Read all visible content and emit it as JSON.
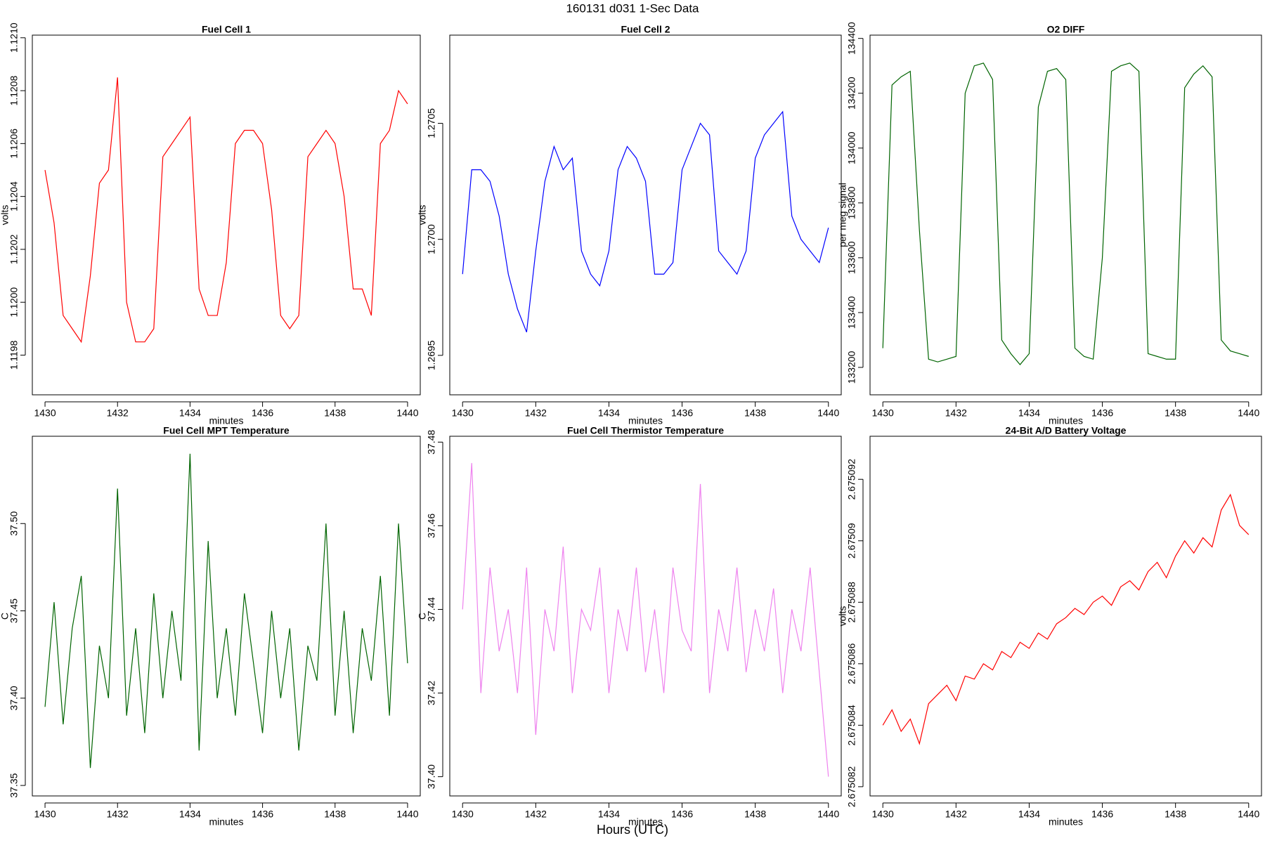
{
  "title": "160131   d031   1-Sec Data",
  "xlabel": "Hours (UTC)",
  "chart_data": [
    {
      "type": "line",
      "title": "Fuel Cell 1",
      "xlabel": "minutes",
      "ylabel": "volts",
      "color": "#ff0000",
      "x": [
        1430,
        1430.25,
        1430.5,
        1430.75,
        1431,
        1431.25,
        1431.5,
        1431.75,
        1432,
        1432.25,
        1432.5,
        1432.75,
        1433,
        1433.25,
        1433.5,
        1433.75,
        1434,
        1434.25,
        1434.5,
        1434.75,
        1435,
        1435.25,
        1435.5,
        1435.75,
        1436,
        1436.25,
        1436.5,
        1436.75,
        1437,
        1437.25,
        1437.5,
        1437.75,
        1438,
        1438.25,
        1438.5,
        1438.75,
        1439,
        1439.25,
        1439.5,
        1439.75,
        1440
      ],
      "values": [
        1.1205,
        1.1203,
        1.11995,
        1.1199,
        1.11985,
        1.1201,
        1.12045,
        1.1205,
        1.12085,
        1.12,
        1.11985,
        1.11985,
        1.1199,
        1.12055,
        1.1206,
        1.12065,
        1.1207,
        1.12005,
        1.11995,
        1.11995,
        1.12015,
        1.1206,
        1.12065,
        1.12065,
        1.1206,
        1.12035,
        1.11995,
        1.1199,
        1.11995,
        1.12055,
        1.1206,
        1.12065,
        1.1206,
        1.1204,
        1.12005,
        1.12005,
        1.11995,
        1.1206,
        1.12065,
        1.1208,
        1.12075
      ],
      "xlim": [
        1429.65,
        1440.35
      ],
      "xticks": [
        1430,
        1432,
        1434,
        1436,
        1438,
        1440
      ],
      "ylim": [
        1.11965,
        1.12101
      ],
      "yticks": [
        {
          "value": 1.1198,
          "label": "1.1198"
        },
        {
          "value": 1.12,
          "label": "1.1200"
        },
        {
          "value": 1.1202,
          "label": "1.1202"
        },
        {
          "value": 1.1204,
          "label": "1.1204"
        },
        {
          "value": 1.1206,
          "label": "1.1206"
        },
        {
          "value": 1.1208,
          "label": "1.1208"
        },
        {
          "value": 1.121,
          "label": "1.1210"
        }
      ]
    },
    {
      "type": "line",
      "title": "Fuel Cell 2",
      "xlabel": "minutes",
      "ylabel": "volts",
      "color": "#0000ff",
      "x": [
        1430,
        1430.25,
        1430.5,
        1430.75,
        1431,
        1431.25,
        1431.5,
        1431.75,
        1432,
        1432.25,
        1432.5,
        1432.75,
        1433,
        1433.25,
        1433.5,
        1433.75,
        1434,
        1434.25,
        1434.5,
        1434.75,
        1435,
        1435.25,
        1435.5,
        1435.75,
        1436,
        1436.25,
        1436.5,
        1436.75,
        1437,
        1437.25,
        1437.5,
        1437.75,
        1438,
        1438.25,
        1438.5,
        1438.75,
        1439,
        1439.25,
        1439.5,
        1439.75,
        1440
      ],
      "values": [
        1.26985,
        1.2703,
        1.2703,
        1.27025,
        1.2701,
        1.26985,
        1.2697,
        1.2696,
        1.26995,
        1.27025,
        1.2704,
        1.2703,
        1.27035,
        1.26995,
        1.26985,
        1.2698,
        1.26995,
        1.2703,
        1.2704,
        1.27035,
        1.27025,
        1.26985,
        1.26985,
        1.2699,
        1.2703,
        1.2704,
        1.2705,
        1.27045,
        1.26995,
        1.2699,
        1.26985,
        1.26995,
        1.27035,
        1.27045,
        1.2705,
        1.27055,
        1.2701,
        1.27,
        1.26995,
        1.2699,
        1.27005
      ],
      "xlim": [
        1429.65,
        1440.35
      ],
      "xticks": [
        1430,
        1432,
        1434,
        1436,
        1438,
        1440
      ],
      "ylim": [
        1.26933,
        1.27088
      ],
      "yticks": [
        1.2695,
        {
          "value": 1.27,
          "label": "1.2700"
        },
        1.2705
      ]
    },
    {
      "type": "line",
      "title": "O2 DIFF",
      "xlabel": "minutes",
      "ylabel": "per meg signal",
      "color": "#006400",
      "x": [
        1430,
        1430.25,
        1430.5,
        1430.75,
        1431,
        1431.25,
        1431.5,
        1431.75,
        1432,
        1432.25,
        1432.5,
        1432.75,
        1433,
        1433.25,
        1433.5,
        1433.75,
        1434,
        1434.25,
        1434.5,
        1434.75,
        1435,
        1435.25,
        1435.5,
        1435.75,
        1436,
        1436.25,
        1436.5,
        1436.75,
        1437,
        1437.25,
        1437.5,
        1437.75,
        1438,
        1438.25,
        1438.5,
        1438.75,
        1439,
        1439.25,
        1439.5,
        1439.75,
        1440
      ],
      "values": [
        133270,
        134230,
        134260,
        134280,
        133700,
        133230,
        133220,
        133230,
        133240,
        134200,
        134300,
        134310,
        134250,
        133300,
        133250,
        133210,
        133250,
        134150,
        134280,
        134290,
        134250,
        133270,
        133240,
        133230,
        133600,
        134280,
        134300,
        134310,
        134280,
        133250,
        133240,
        133230,
        133230,
        134220,
        134270,
        134300,
        134260,
        133300,
        133260,
        133250,
        133240
      ],
      "xlim": [
        1429.65,
        1440.35
      ],
      "xticks": [
        1430,
        1432,
        1434,
        1436,
        1438,
        1440
      ],
      "ylim": [
        133100,
        134412
      ],
      "yticks": [
        133200,
        133400,
        133600,
        133800,
        134000,
        134200,
        134400
      ]
    },
    {
      "type": "line",
      "title": "Fuel Cell MPT Temperature",
      "xlabel": "minutes",
      "ylabel": "C",
      "color": "#006400",
      "x": [
        1430,
        1430.25,
        1430.5,
        1430.75,
        1431,
        1431.25,
        1431.5,
        1431.75,
        1432,
        1432.25,
        1432.5,
        1432.75,
        1433,
        1433.25,
        1433.5,
        1433.75,
        1434,
        1434.25,
        1434.5,
        1434.75,
        1435,
        1435.25,
        1435.5,
        1435.75,
        1436,
        1436.25,
        1436.5,
        1436.75,
        1437,
        1437.25,
        1437.5,
        1437.75,
        1438,
        1438.25,
        1438.5,
        1438.75,
        1439,
        1439.25,
        1439.5,
        1439.75,
        1440
      ],
      "values": [
        37.395,
        37.455,
        37.385,
        37.44,
        37.47,
        37.36,
        37.43,
        37.4,
        37.52,
        37.39,
        37.44,
        37.38,
        37.46,
        37.4,
        37.45,
        37.41,
        37.54,
        37.37,
        37.49,
        37.4,
        37.44,
        37.39,
        37.46,
        37.42,
        37.38,
        37.45,
        37.4,
        37.44,
        37.37,
        37.43,
        37.41,
        37.5,
        37.39,
        37.45,
        37.38,
        37.44,
        37.41,
        37.47,
        37.39,
        37.5,
        37.42
      ],
      "xlim": [
        1429.65,
        1440.35
      ],
      "xticks": [
        1430,
        1432,
        1434,
        1436,
        1438,
        1440
      ],
      "ylim": [
        37.344,
        37.55
      ],
      "yticks": [
        37.35,
        {
          "value": 37.4,
          "label": "37.40"
        },
        37.45,
        {
          "value": 37.5,
          "label": "37.50"
        }
      ]
    },
    {
      "type": "line",
      "title": "Fuel Cell Thermistor Temperature",
      "xlabel": "minutes",
      "ylabel": "C",
      "color": "#ee82ee",
      "x": [
        1430,
        1430.25,
        1430.5,
        1430.75,
        1431,
        1431.25,
        1431.5,
        1431.75,
        1432,
        1432.25,
        1432.5,
        1432.75,
        1433,
        1433.25,
        1433.5,
        1433.75,
        1434,
        1434.25,
        1434.5,
        1434.75,
        1435,
        1435.25,
        1435.5,
        1435.75,
        1436,
        1436.25,
        1436.5,
        1436.75,
        1437,
        1437.25,
        1437.5,
        1437.75,
        1438,
        1438.25,
        1438.5,
        1438.75,
        1439,
        1439.25,
        1439.5,
        1439.75,
        1440
      ],
      "values": [
        37.44,
        37.475,
        37.42,
        37.45,
        37.43,
        37.44,
        37.42,
        37.45,
        37.41,
        37.44,
        37.43,
        37.455,
        37.42,
        37.44,
        37.435,
        37.45,
        37.42,
        37.44,
        37.43,
        37.45,
        37.425,
        37.44,
        37.42,
        37.45,
        37.435,
        37.43,
        37.47,
        37.42,
        37.44,
        37.43,
        37.45,
        37.425,
        37.44,
        37.43,
        37.445,
        37.42,
        37.44,
        37.43,
        37.45,
        37.425,
        37.4
      ],
      "xlim": [
        1429.65,
        1440.35
      ],
      "xticks": [
        1430,
        1432,
        1434,
        1436,
        1438,
        1440
      ],
      "ylim": [
        37.3954,
        37.4814
      ],
      "yticks": [
        {
          "value": 37.4,
          "label": "37.40"
        },
        37.42,
        37.44,
        37.46,
        37.48
      ]
    },
    {
      "type": "line",
      "title": "24-Bit A/D Battery Voltage",
      "xlabel": "minutes",
      "ylabel": "volts",
      "color": "#ff0000",
      "x": [
        1430,
        1430.25,
        1430.5,
        1430.75,
        1431,
        1431.25,
        1431.5,
        1431.75,
        1432,
        1432.25,
        1432.5,
        1432.75,
        1433,
        1433.25,
        1433.5,
        1433.75,
        1434,
        1434.25,
        1434.5,
        1434.75,
        1435,
        1435.25,
        1435.5,
        1435.75,
        1436,
        1436.25,
        1436.5,
        1436.75,
        1437,
        1437.25,
        1437.5,
        1437.75,
        1438,
        1438.25,
        1438.5,
        1438.75,
        1439,
        1439.25,
        1439.5,
        1439.75,
        1440
      ],
      "values": [
        2.675084,
        2.6750845,
        2.6750838,
        2.6750842,
        2.6750834,
        2.6750847,
        2.675085,
        2.6750853,
        2.6750848,
        2.6750856,
        2.6750855,
        2.675086,
        2.6750858,
        2.6750864,
        2.6750862,
        2.6750867,
        2.6750865,
        2.675087,
        2.6750868,
        2.6750873,
        2.6750875,
        2.6750878,
        2.6750876,
        2.675088,
        2.6750882,
        2.6750879,
        2.6750885,
        2.6750887,
        2.6750884,
        2.675089,
        2.6750893,
        2.6750888,
        2.6750895,
        2.67509,
        2.6750896,
        2.6750901,
        2.6750898,
        2.675091,
        2.6750915,
        2.6750905,
        2.6750902
      ],
      "xlim": [
        1429.65,
        1440.35
      ],
      "xticks": [
        1430,
        1432,
        1434,
        1436,
        1438,
        1440
      ],
      "ylim": [
        2.6750817,
        2.6750934
      ],
      "yticks": [
        2.675082,
        2.675084,
        2.675086,
        2.675088,
        2.67509,
        2.675092
      ]
    }
  ]
}
